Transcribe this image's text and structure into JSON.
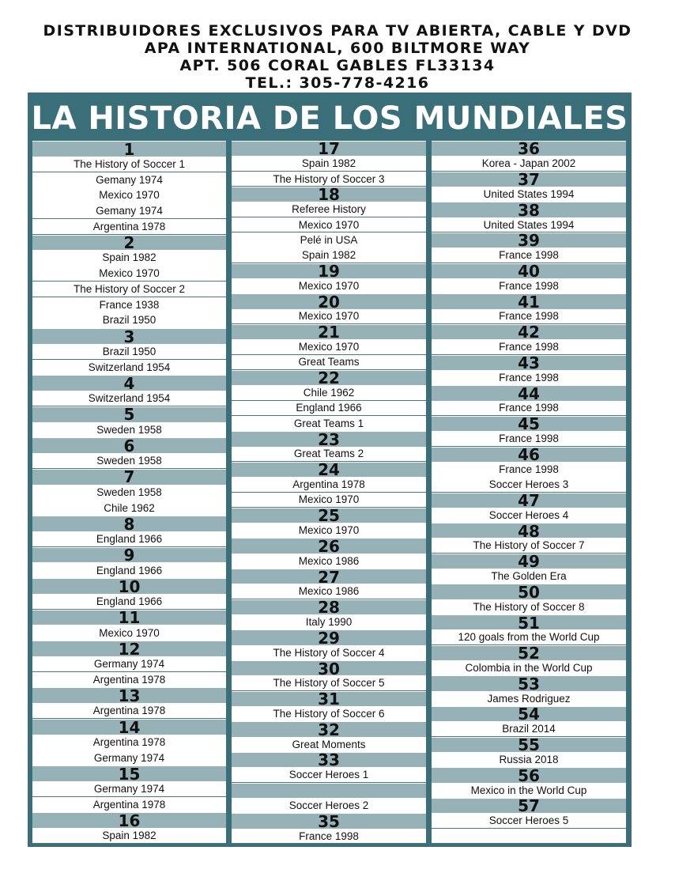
{
  "header": {
    "lines": [
      "DISTRIBUIDORES EXCLUSIVOS PARA TV ABIERTA, CABLE Y DVD",
      "APA INTERNATIONAL, 600 BILTMORE WAY",
      "APT. 506 CORAL GABLES FL33134",
      "TEL.: 305-778-4216"
    ]
  },
  "title": "LA HISTORIA DE LOS MUNDIALES",
  "columns": [
    {
      "rows": [
        {
          "type": "head",
          "text": "1"
        },
        {
          "type": "item",
          "text": "The History of Soccer 1"
        },
        {
          "type": "item",
          "text": "Gemany 1974"
        },
        {
          "type": "item",
          "text": "Mexico 1970"
        },
        {
          "type": "item",
          "text": "Gemany 1974"
        },
        {
          "type": "item",
          "text": "Argentina 1978"
        },
        {
          "type": "head",
          "text": "2"
        },
        {
          "type": "item",
          "text": "Spain 1982"
        },
        {
          "type": "item",
          "text": "Mexico 1970"
        },
        {
          "type": "item",
          "text": "The History of Soccer 2"
        },
        {
          "type": "item",
          "text": "France 1938"
        },
        {
          "type": "item",
          "text": "Brazil 1950"
        },
        {
          "type": "head",
          "text": "3"
        },
        {
          "type": "item",
          "text": "Brazil 1950"
        },
        {
          "type": "item",
          "text": "Switzerland 1954"
        },
        {
          "type": "head",
          "text": "4"
        },
        {
          "type": "item",
          "text": "Switzerland 1954"
        },
        {
          "type": "head",
          "text": "5"
        },
        {
          "type": "item",
          "text": "Sweden 1958"
        },
        {
          "type": "head",
          "text": "6"
        },
        {
          "type": "item",
          "text": "Sweden 1958"
        },
        {
          "type": "head",
          "text": "7"
        },
        {
          "type": "item",
          "text": "Sweden 1958"
        },
        {
          "type": "item",
          "text": "Chile 1962"
        },
        {
          "type": "head",
          "text": "8"
        },
        {
          "type": "item",
          "text": "England 1966"
        },
        {
          "type": "head",
          "text": "9"
        },
        {
          "type": "item",
          "text": "England 1966"
        },
        {
          "type": "head",
          "text": "10"
        },
        {
          "type": "item",
          "text": "England 1966"
        },
        {
          "type": "head",
          "text": "11"
        },
        {
          "type": "item",
          "text": "Mexico 1970"
        },
        {
          "type": "head",
          "text": "12"
        },
        {
          "type": "item",
          "text": "Germany 1974"
        },
        {
          "type": "item",
          "text": "Argentina 1978"
        },
        {
          "type": "head",
          "text": "13"
        },
        {
          "type": "item",
          "text": "Argentina 1978"
        },
        {
          "type": "head",
          "text": "14"
        },
        {
          "type": "item",
          "text": "Argentina 1978"
        },
        {
          "type": "item",
          "text": "Germany 1974"
        },
        {
          "type": "head",
          "text": "15"
        },
        {
          "type": "item",
          "text": "Germany 1974"
        },
        {
          "type": "item",
          "text": "Argentina 1978"
        },
        {
          "type": "head",
          "text": "16"
        },
        {
          "type": "item",
          "text": "Spain 1982"
        }
      ]
    },
    {
      "rows": [
        {
          "type": "head",
          "text": "17"
        },
        {
          "type": "item",
          "text": "Spain 1982"
        },
        {
          "type": "item",
          "text": "The History of Soccer 3"
        },
        {
          "type": "head",
          "text": "18"
        },
        {
          "type": "item",
          "text": "Referee History"
        },
        {
          "type": "item",
          "text": "Mexico 1970"
        },
        {
          "type": "item",
          "text": "Pelé in USA"
        },
        {
          "type": "item",
          "text": "Spain 1982"
        },
        {
          "type": "head",
          "text": "19"
        },
        {
          "type": "item",
          "text": "Mexico 1970"
        },
        {
          "type": "head",
          "text": "20"
        },
        {
          "type": "item",
          "text": "Mexico 1970"
        },
        {
          "type": "head",
          "text": "21"
        },
        {
          "type": "item",
          "text": "Mexico 1970"
        },
        {
          "type": "item",
          "text": "Great Teams"
        },
        {
          "type": "head",
          "text": "22"
        },
        {
          "type": "item",
          "text": "Chile 1962"
        },
        {
          "type": "item",
          "text": "England 1966"
        },
        {
          "type": "item",
          "text": "Great Teams 1"
        },
        {
          "type": "head",
          "text": "23"
        },
        {
          "type": "item",
          "text": "Great Teams 2"
        },
        {
          "type": "head",
          "text": "24"
        },
        {
          "type": "item",
          "text": "Argentina 1978"
        },
        {
          "type": "item",
          "text": "Mexico 1970"
        },
        {
          "type": "head",
          "text": "25"
        },
        {
          "type": "item",
          "text": "Mexico 1970"
        },
        {
          "type": "head",
          "text": "26"
        },
        {
          "type": "item",
          "text": "Mexico 1986"
        },
        {
          "type": "head",
          "text": "27"
        },
        {
          "type": "item",
          "text": "Mexico 1986"
        },
        {
          "type": "head",
          "text": "28"
        },
        {
          "type": "item",
          "text": "Italy 1990"
        },
        {
          "type": "head",
          "text": "29"
        },
        {
          "type": "item",
          "text": "The History of Soccer 4"
        },
        {
          "type": "head",
          "text": "30"
        },
        {
          "type": "item",
          "text": "The History of Soccer 5"
        },
        {
          "type": "head",
          "text": "31"
        },
        {
          "type": "item",
          "text": "The History of Soccer 6"
        },
        {
          "type": "head",
          "text": "32"
        },
        {
          "type": "item",
          "text": "Great Moments"
        },
        {
          "type": "head",
          "text": "33"
        },
        {
          "type": "item",
          "text": "Soccer Heroes 1"
        },
        {
          "type": "head",
          "text": ""
        },
        {
          "type": "item",
          "text": "Soccer Heroes 2"
        },
        {
          "type": "head",
          "text": "35"
        },
        {
          "type": "item",
          "text": "France 1998"
        }
      ]
    },
    {
      "rows": [
        {
          "type": "head",
          "text": "36"
        },
        {
          "type": "item",
          "text": "Korea - Japan 2002"
        },
        {
          "type": "head",
          "text": "37"
        },
        {
          "type": "item",
          "text": "United States 1994"
        },
        {
          "type": "head",
          "text": "38"
        },
        {
          "type": "item",
          "text": "United States 1994"
        },
        {
          "type": "head",
          "text": "39"
        },
        {
          "type": "item",
          "text": "France 1998"
        },
        {
          "type": "head",
          "text": "40"
        },
        {
          "type": "item",
          "text": "France 1998"
        },
        {
          "type": "head",
          "text": "41"
        },
        {
          "type": "item",
          "text": "France 1998"
        },
        {
          "type": "head",
          "text": "42"
        },
        {
          "type": "item",
          "text": "France 1998"
        },
        {
          "type": "head",
          "text": "43"
        },
        {
          "type": "item",
          "text": "France 1998"
        },
        {
          "type": "head",
          "text": "44"
        },
        {
          "type": "item",
          "text": "France 1998"
        },
        {
          "type": "head",
          "text": "45"
        },
        {
          "type": "item",
          "text": "France 1998"
        },
        {
          "type": "head",
          "text": "46"
        },
        {
          "type": "item",
          "text": "France 1998"
        },
        {
          "type": "item",
          "text": "Soccer Heroes 3"
        },
        {
          "type": "head",
          "text": "47"
        },
        {
          "type": "item",
          "text": "Soccer Heroes 4"
        },
        {
          "type": "head",
          "text": "48"
        },
        {
          "type": "item",
          "text": "The History of Soccer 7"
        },
        {
          "type": "head",
          "text": "49"
        },
        {
          "type": "item",
          "text": "The Golden Era"
        },
        {
          "type": "head",
          "text": "50"
        },
        {
          "type": "item",
          "text": "The History of Soccer 8"
        },
        {
          "type": "head",
          "text": "51"
        },
        {
          "type": "item",
          "text": "120 goals from the World Cup"
        },
        {
          "type": "head",
          "text": "52"
        },
        {
          "type": "item",
          "text": "Colombia in the World Cup"
        },
        {
          "type": "head",
          "text": "53"
        },
        {
          "type": "item",
          "text": "James Rodriguez"
        },
        {
          "type": "head",
          "text": "54"
        },
        {
          "type": "item",
          "text": "Brazil 2014"
        },
        {
          "type": "head",
          "text": "55"
        },
        {
          "type": "item",
          "text": "Russia 2018"
        },
        {
          "type": "head",
          "text": "56"
        },
        {
          "type": "item",
          "text": "Mexico in the World Cup"
        },
        {
          "type": "head",
          "text": "57"
        },
        {
          "type": "item",
          "text": "Soccer Heroes 5"
        },
        {
          "type": "item",
          "text": ""
        }
      ]
    }
  ]
}
